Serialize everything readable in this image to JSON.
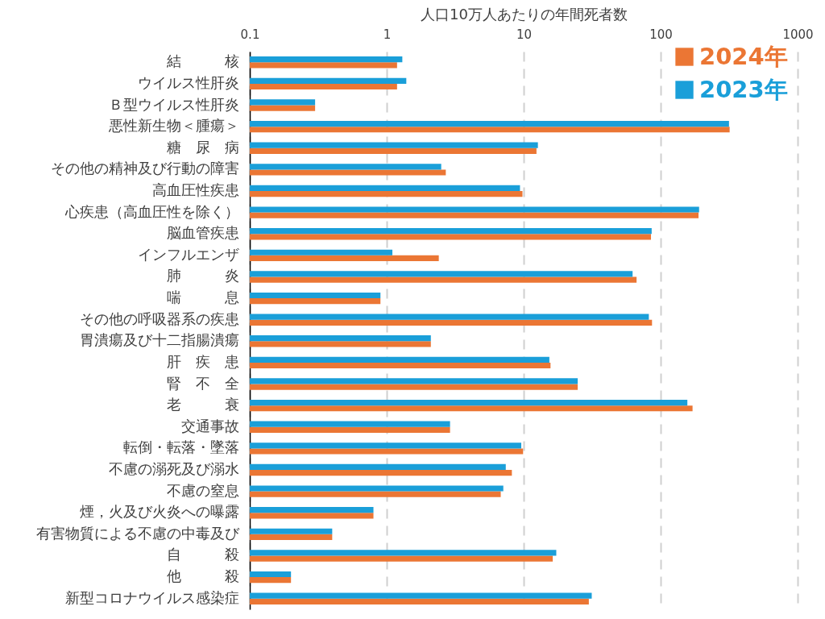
{
  "chart_data": {
    "type": "bar",
    "orientation": "horizontal",
    "xlabel": "人口10万人あたりの年間死者数",
    "categories": [
      "結　　　核",
      "ウイルス性肝炎",
      "Ｂ型ウイルス性肝炎",
      "悪性新生物＜腫瘍＞",
      "糖　尿　病",
      "その他の精神及び行動の障害",
      "高血圧性疾患",
      "心疾患（高血圧性を除く）",
      "脳血管疾患",
      "インフルエンザ",
      "肺　　　炎",
      "喘　　　息",
      "その他の呼吸器系の疾患",
      "胃潰瘍及び十二指腸潰瘍",
      "肝　疾　患",
      "腎　不　全",
      "老　　　衰",
      "交通事故",
      "転倒・転落・墜落",
      "不慮の溺死及び溺水",
      "不慮の窒息",
      "煙，火及び火炎への曝露",
      "有害物質による不慮の中毒及び",
      "自　　　殺",
      "他　　　殺",
      "新型コロナウイルス感染症"
    ],
    "series": [
      {
        "name": "2024年",
        "color": "#eb7634",
        "values": [
          1.19,
          1.19,
          0.3,
          319,
          12.4,
          2.7,
          9.8,
          189,
          85,
          2.4,
          66.7,
          0.9,
          86.5,
          2.1,
          15.7,
          24.8,
          171,
          2.9,
          9.9,
          8.2,
          6.8,
          0.8,
          0.4,
          16.3,
          0.2,
          29.9
        ]
      },
      {
        "name": "2023年",
        "color": "#1a9fd9",
        "values": [
          1.3,
          1.39,
          0.3,
          315.6,
          12.7,
          2.5,
          9.4,
          190.9,
          86,
          1.1,
          62.4,
          0.9,
          82,
          2.1,
          15.4,
          24.8,
          156.7,
          2.9,
          9.6,
          7.4,
          7.1,
          0.8,
          0.4,
          17.3,
          0.2,
          31.4
        ]
      }
    ],
    "log": "x",
    "xlim": [
      0.1,
      1000
    ],
    "xticks": [
      0.1,
      1,
      10,
      100,
      1000
    ],
    "grid": "x",
    "legend": "top right"
  }
}
